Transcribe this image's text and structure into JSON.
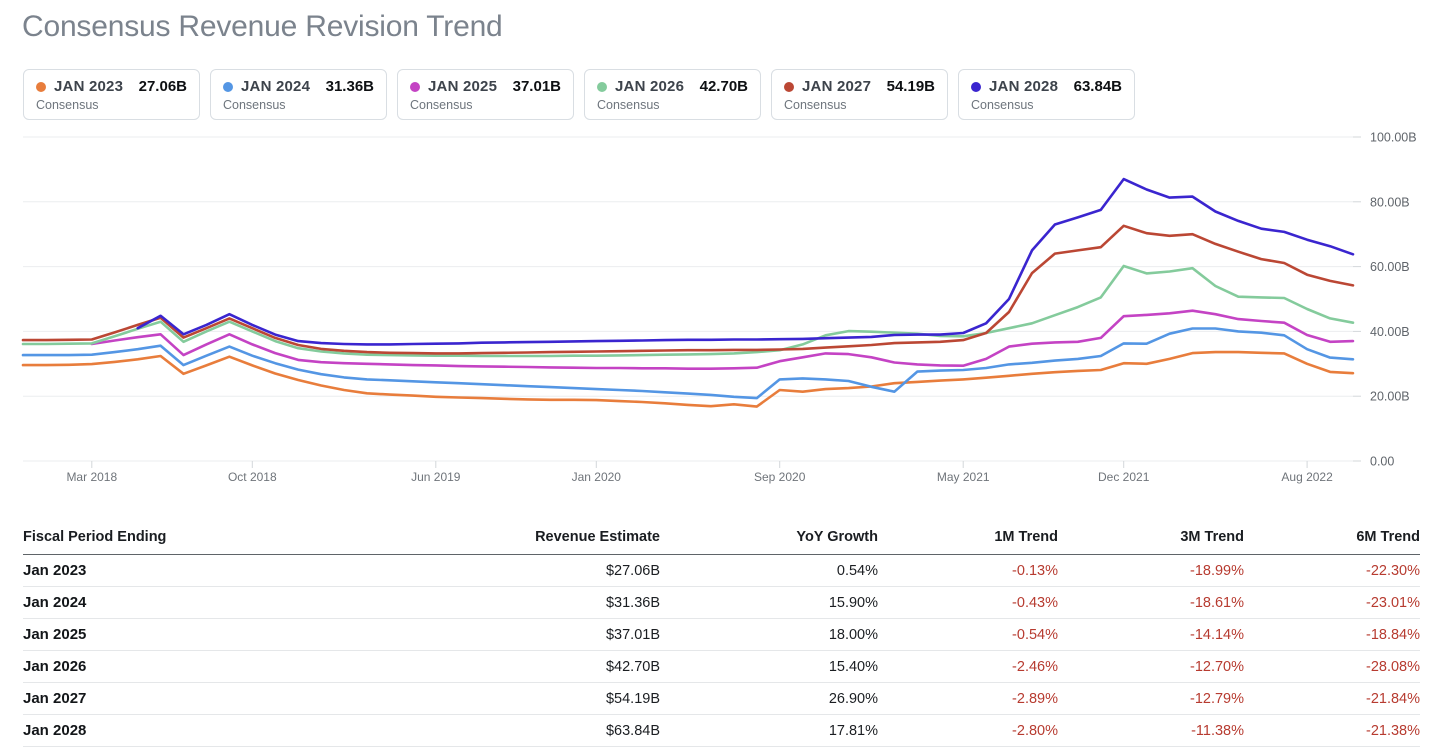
{
  "title": "Consensus Revenue Revision Trend",
  "legend": {
    "sub_label": "Consensus",
    "items": [
      {
        "label": "JAN 2023",
        "value": "27.06B",
        "color": "#e87d3c"
      },
      {
        "label": "JAN 2024",
        "value": "31.36B",
        "color": "#5496e4"
      },
      {
        "label": "JAN 2025",
        "value": "37.01B",
        "color": "#c443c4"
      },
      {
        "label": "JAN 2026",
        "value": "42.70B",
        "color": "#84cb9c"
      },
      {
        "label": "JAN 2027",
        "value": "54.19B",
        "color": "#bb4734"
      },
      {
        "label": "JAN 2028",
        "value": "63.84B",
        "color": "#3a25cf"
      }
    ]
  },
  "chart_data": {
    "type": "line",
    "title": "Consensus Revenue Revision Trend",
    "unit": "billions USD",
    "ylim": [
      0,
      100
    ],
    "grid": true,
    "legend_position": "top",
    "y_tick_values": [
      0,
      20,
      40,
      60,
      80,
      100
    ],
    "y_tick_labels": [
      "0.00",
      "20.00B",
      "40.00B",
      "60.00B",
      "80.00B",
      "100.00B"
    ],
    "x_tick_indices": [
      3,
      10,
      18,
      25,
      33,
      41,
      48,
      56
    ],
    "x_tick_labels": [
      "Mar 2018",
      "Oct 2018",
      "Jun 2019",
      "Jan 2020",
      "Sep 2020",
      "May 2021",
      "Dec 2021",
      "Aug 2022"
    ],
    "n_points": 59,
    "series": [
      {
        "name": "JAN 2023 Consensus",
        "color": "#e87d3c",
        "values": [
          29.6,
          29.6,
          29.7,
          29.9,
          30.6,
          31.4,
          32.4,
          26.9,
          29.5,
          32.2,
          29.5,
          27.0,
          25.0,
          23.3,
          21.9,
          20.9,
          20.5,
          20.2,
          19.8,
          19.6,
          19.4,
          19.2,
          19.0,
          18.9,
          18.9,
          18.8,
          18.5,
          18.2,
          17.8,
          17.3,
          16.9,
          17.5,
          16.8,
          21.9,
          21.4,
          22.2,
          22.5,
          23.0,
          24.0,
          24.4,
          24.8,
          25.2,
          25.7,
          26.3,
          26.9,
          27.4,
          27.8,
          28.1,
          30.2,
          30.0,
          31.5,
          33.3,
          33.6,
          33.6,
          33.4,
          33.2,
          30.0,
          27.5,
          27.1
        ]
      },
      {
        "name": "JAN 2024 Consensus",
        "color": "#5496e4",
        "values": [
          32.7,
          32.7,
          32.7,
          32.8,
          33.6,
          34.5,
          35.6,
          29.6,
          32.5,
          35.3,
          32.5,
          30.2,
          28.2,
          26.8,
          25.8,
          25.2,
          24.9,
          24.6,
          24.3,
          24.0,
          23.7,
          23.4,
          23.1,
          22.8,
          22.5,
          22.2,
          21.9,
          21.6,
          21.2,
          20.8,
          20.4,
          19.8,
          19.4,
          25.2,
          25.5,
          25.2,
          24.7,
          22.9,
          21.4,
          27.6,
          27.9,
          28.1,
          28.7,
          29.8,
          30.3,
          31.0,
          31.5,
          32.4,
          36.3,
          36.2,
          39.3,
          40.9,
          40.9,
          40.0,
          39.6,
          38.8,
          34.5,
          31.9,
          31.4
        ]
      },
      {
        "name": "JAN 2025 Consensus",
        "color": "#c443c4",
        "values": [
          null,
          null,
          null,
          36.1,
          37.2,
          38.2,
          39.1,
          32.7,
          36.0,
          39.1,
          36.0,
          33.3,
          31.2,
          30.5,
          30.2,
          30.0,
          29.8,
          29.6,
          29.5,
          29.3,
          29.2,
          29.1,
          29.0,
          28.9,
          28.8,
          28.7,
          28.7,
          28.6,
          28.6,
          28.5,
          28.5,
          28.6,
          28.8,
          30.8,
          32.0,
          33.2,
          33.0,
          32.0,
          30.4,
          29.8,
          29.5,
          29.4,
          31.5,
          35.3,
          36.2,
          36.6,
          36.8,
          38.0,
          44.7,
          45.1,
          45.6,
          46.4,
          45.3,
          43.8,
          43.2,
          42.7,
          38.9,
          36.8,
          37.0
        ]
      },
      {
        "name": "JAN 2026 Consensus",
        "color": "#84cb9c",
        "values": [
          36.1,
          36.1,
          36.2,
          36.3,
          38.5,
          40.8,
          43.0,
          36.8,
          40.0,
          43.0,
          40.0,
          37.0,
          34.8,
          33.8,
          33.2,
          32.8,
          32.7,
          32.6,
          32.5,
          32.5,
          32.4,
          32.4,
          32.4,
          32.4,
          32.5,
          32.5,
          32.6,
          32.7,
          32.8,
          32.9,
          33.0,
          33.2,
          33.6,
          34.2,
          36.0,
          38.8,
          40.1,
          39.9,
          39.6,
          39.3,
          38.6,
          38.5,
          39.5,
          41.0,
          42.5,
          45.0,
          47.5,
          50.5,
          60.2,
          57.9,
          58.5,
          59.5,
          54.0,
          50.7,
          50.5,
          50.3,
          46.9,
          44.0,
          42.7
        ]
      },
      {
        "name": "JAN 2027 Consensus",
        "color": "#bb4734",
        "values": [
          37.3,
          37.3,
          37.4,
          37.5,
          39.7,
          42.0,
          44.2,
          38.1,
          41.0,
          44.0,
          41.0,
          38.0,
          35.8,
          34.6,
          34.0,
          33.6,
          33.4,
          33.3,
          33.2,
          33.2,
          33.3,
          33.4,
          33.5,
          33.6,
          33.7,
          33.8,
          33.9,
          34.0,
          34.1,
          34.2,
          34.2,
          34.3,
          34.3,
          34.4,
          34.6,
          35.0,
          35.4,
          35.8,
          36.4,
          36.6,
          36.8,
          37.3,
          39.5,
          46.0,
          58.0,
          64.0,
          65.0,
          66.0,
          72.6,
          70.3,
          69.5,
          70.0,
          67.0,
          64.6,
          62.3,
          61.1,
          57.5,
          55.6,
          54.2
        ]
      },
      {
        "name": "JAN 2028 Consensus",
        "color": "#3a25cf",
        "values": [
          null,
          null,
          null,
          null,
          null,
          41.0,
          44.8,
          39.1,
          42.0,
          45.3,
          42.0,
          39.0,
          37.0,
          36.4,
          36.1,
          36.0,
          36.0,
          36.1,
          36.2,
          36.3,
          36.5,
          36.6,
          36.7,
          36.8,
          36.9,
          37.0,
          37.1,
          37.2,
          37.3,
          37.4,
          37.4,
          37.5,
          37.5,
          37.6,
          37.7,
          37.9,
          38.1,
          38.3,
          38.9,
          39.0,
          39.0,
          39.5,
          42.5,
          50.0,
          65.0,
          73.0,
          75.2,
          77.5,
          87.0,
          83.8,
          81.3,
          81.6,
          77.0,
          74.1,
          71.7,
          70.7,
          68.3,
          66.3,
          63.8
        ]
      }
    ]
  },
  "table": {
    "headers": [
      "Fiscal Period Ending",
      "Revenue Estimate",
      "YoY Growth",
      "1M Trend",
      "3M Trend",
      "6M Trend"
    ],
    "rows": [
      {
        "period": "Jan 2023",
        "revenue": "$27.06B",
        "yoy": "0.54%",
        "m1": "-0.13%",
        "m3": "-18.99%",
        "m6": "-22.30%"
      },
      {
        "period": "Jan 2024",
        "revenue": "$31.36B",
        "yoy": "15.90%",
        "m1": "-0.43%",
        "m3": "-18.61%",
        "m6": "-23.01%"
      },
      {
        "period": "Jan 2025",
        "revenue": "$37.01B",
        "yoy": "18.00%",
        "m1": "-0.54%",
        "m3": "-14.14%",
        "m6": "-18.84%"
      },
      {
        "period": "Jan 2026",
        "revenue": "$42.70B",
        "yoy": "15.40%",
        "m1": "-2.46%",
        "m3": "-12.70%",
        "m6": "-28.08%"
      },
      {
        "period": "Jan 2027",
        "revenue": "$54.19B",
        "yoy": "26.90%",
        "m1": "-2.89%",
        "m3": "-12.79%",
        "m6": "-21.84%"
      },
      {
        "period": "Jan 2028",
        "revenue": "$63.84B",
        "yoy": "17.81%",
        "m1": "-2.80%",
        "m3": "-11.38%",
        "m6": "-21.38%"
      }
    ],
    "negative_color": "#b73b30"
  }
}
